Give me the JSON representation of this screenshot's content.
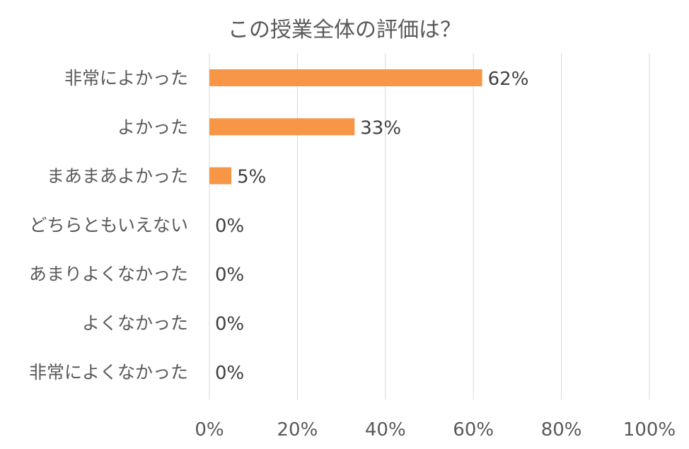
{
  "chart_data": {
    "type": "bar",
    "orientation": "horizontal",
    "title": "この授業全体の評価は？",
    "categories": [
      "非常によかった",
      "よかった",
      "まあまあよかった",
      "どちらともいえない",
      "あまりよくなかった",
      "よくなかった",
      "非常によくなかった"
    ],
    "values": [
      62,
      33,
      5,
      0,
      0,
      0,
      0
    ],
    "data_labels": [
      "62%",
      "33%",
      "5%",
      "0%",
      "0%",
      "0%",
      "0%"
    ],
    "xlim": [
      0,
      100
    ],
    "x_ticks": [
      0,
      20,
      40,
      60,
      80,
      100
    ],
    "x_tick_labels": [
      "0%",
      "20%",
      "40%",
      "60%",
      "80%",
      "100%"
    ],
    "grid": true,
    "legend": "none",
    "bar_color": "#F79646"
  }
}
